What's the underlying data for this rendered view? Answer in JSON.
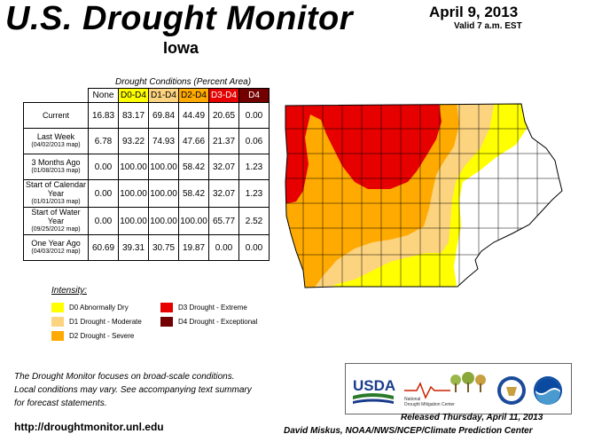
{
  "header": {
    "title": "U.S. Drought Monitor",
    "state": "Iowa",
    "date": "April 9, 2013",
    "valid": "Valid 7 a.m. EST"
  },
  "table": {
    "caption": "Drought Conditions (Percent Area)",
    "columns": [
      "None",
      "D0-D4",
      "D1-D4",
      "D2-D4",
      "D3-D4",
      "D4"
    ],
    "column_colors": [
      "#ffffff",
      "#ffff00",
      "#fcd37f",
      "#ffaa00",
      "#e60000",
      "#730000"
    ],
    "rows": [
      {
        "label": "Current",
        "sub": "",
        "values": [
          "16.83",
          "83.17",
          "69.84",
          "44.49",
          "20.65",
          "0.00"
        ]
      },
      {
        "label": "Last Week",
        "sub": "(04/02/2013 map)",
        "values": [
          "6.78",
          "93.22",
          "74.93",
          "47.66",
          "21.37",
          "0.06"
        ]
      },
      {
        "label": "3 Months Ago",
        "sub": "(01/08/2013 map)",
        "values": [
          "0.00",
          "100.00",
          "100.00",
          "58.42",
          "32.07",
          "1.23"
        ]
      },
      {
        "label": "Start of Calendar Year",
        "sub": "(01/01/2013 map)",
        "values": [
          "0.00",
          "100.00",
          "100.00",
          "58.42",
          "32.07",
          "1.23"
        ]
      },
      {
        "label": "Start of Water Year",
        "sub": "(09/25/2012 map)",
        "values": [
          "0.00",
          "100.00",
          "100.00",
          "100.00",
          "65.77",
          "2.52"
        ]
      },
      {
        "label": "One Year Ago",
        "sub": "(04/03/2012 map)",
        "values": [
          "60.69",
          "39.31",
          "30.75",
          "19.87",
          "0.00",
          "0.00"
        ]
      }
    ]
  },
  "legend": {
    "title": "Intensity:",
    "items": [
      {
        "label": "D0 Abnormally Dry",
        "color": "#ffff00"
      },
      {
        "label": "D1 Drought - Moderate",
        "color": "#fcd37f"
      },
      {
        "label": "D2 Drought - Severe",
        "color": "#ffaa00"
      },
      {
        "label": "D3 Drought - Extreme",
        "color": "#e60000"
      },
      {
        "label": "D4 Drought - Exceptional",
        "color": "#730000"
      }
    ]
  },
  "footer": {
    "note_lines": [
      "The Drought Monitor focuses on broad-scale conditions.",
      "Local conditions may vary. See accompanying text summary",
      "for forecast statements."
    ],
    "url": "http://droughtmonitor.unl.edu",
    "released": "Released Thursday, April 11, 2013",
    "author": "David Miskus, NOAA/NWS/NCEP/Climate Prediction Center",
    "logos": {
      "usda": "USDA",
      "ndmc_line1": "National",
      "ndmc_line2": "Drought Mitigation Center"
    }
  }
}
